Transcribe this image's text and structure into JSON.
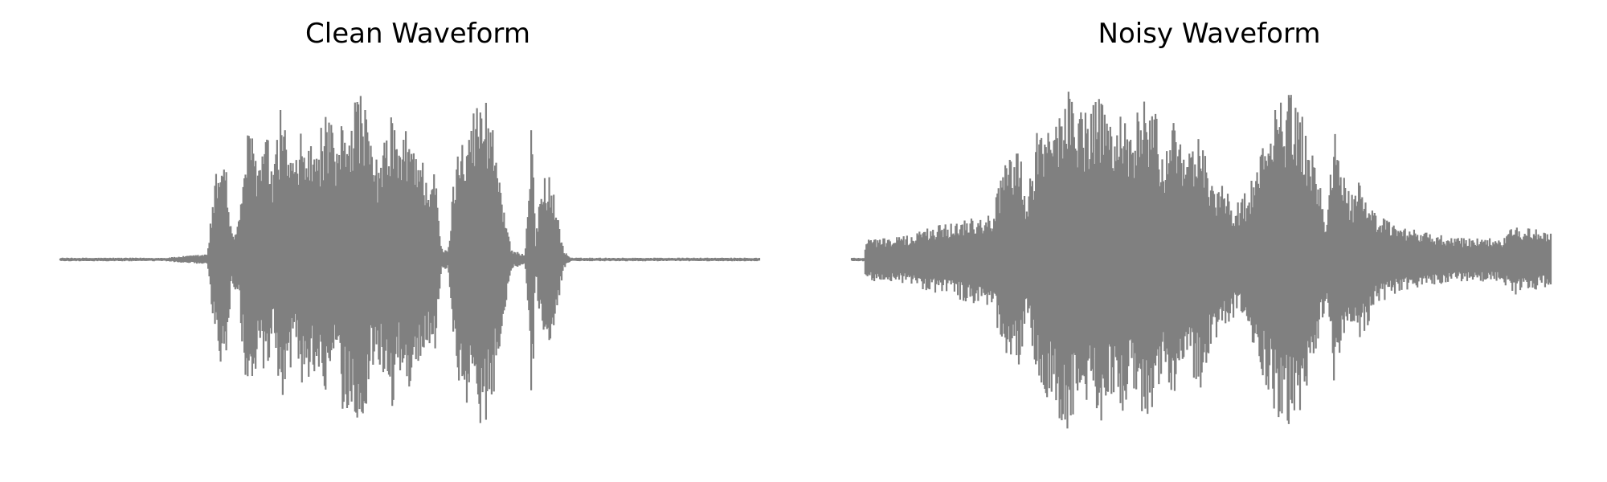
{
  "color": "#808080",
  "chart_data": [
    {
      "type": "waveform",
      "title": "Clean Waveform",
      "axes": "off",
      "grid": false,
      "ylim": [
        -1.0,
        1.0
      ],
      "color": "#808080",
      "envelope": [
        [
          0.0,
          0.01
        ],
        [
          0.05,
          0.01
        ],
        [
          0.1,
          0.01
        ],
        [
          0.15,
          0.01
        ],
        [
          0.18,
          0.02
        ],
        [
          0.21,
          0.03
        ],
        [
          0.225,
          0.55
        ],
        [
          0.235,
          0.65
        ],
        [
          0.245,
          0.15
        ],
        [
          0.255,
          0.2
        ],
        [
          0.265,
          0.68
        ],
        [
          0.275,
          0.7
        ],
        [
          0.285,
          0.55
        ],
        [
          0.295,
          0.72
        ],
        [
          0.305,
          0.45
        ],
        [
          0.315,
          0.85
        ],
        [
          0.325,
          0.68
        ],
        [
          0.335,
          0.5
        ],
        [
          0.345,
          0.7
        ],
        [
          0.355,
          0.65
        ],
        [
          0.365,
          0.6
        ],
        [
          0.375,
          0.75
        ],
        [
          0.385,
          0.8
        ],
        [
          0.395,
          0.55
        ],
        [
          0.405,
          0.85
        ],
        [
          0.415,
          0.8
        ],
        [
          0.425,
          0.95
        ],
        [
          0.435,
          0.9
        ],
        [
          0.445,
          0.6
        ],
        [
          0.455,
          0.55
        ],
        [
          0.465,
          0.65
        ],
        [
          0.475,
          0.85
        ],
        [
          0.485,
          0.6
        ],
        [
          0.495,
          0.72
        ],
        [
          0.505,
          0.68
        ],
        [
          0.515,
          0.6
        ],
        [
          0.525,
          0.45
        ],
        [
          0.535,
          0.55
        ],
        [
          0.545,
          0.06
        ],
        [
          0.555,
          0.05
        ],
        [
          0.565,
          0.55
        ],
        [
          0.575,
          0.75
        ],
        [
          0.585,
          0.8
        ],
        [
          0.595,
          0.85
        ],
        [
          0.605,
          0.92
        ],
        [
          0.615,
          0.85
        ],
        [
          0.625,
          0.6
        ],
        [
          0.635,
          0.3
        ],
        [
          0.645,
          0.05
        ],
        [
          0.655,
          0.04
        ],
        [
          0.665,
          0.03
        ],
        [
          0.675,
          0.85
        ],
        [
          0.68,
          0.1
        ],
        [
          0.69,
          0.5
        ],
        [
          0.7,
          0.45
        ],
        [
          0.71,
          0.3
        ],
        [
          0.72,
          0.05
        ],
        [
          0.73,
          0.01
        ],
        [
          0.8,
          0.01
        ],
        [
          0.9,
          0.01
        ],
        [
          1.0,
          0.01
        ]
      ]
    },
    {
      "type": "waveform",
      "title": "Noisy Waveform",
      "axes": "off",
      "grid": false,
      "ylim": [
        -1.0,
        1.0
      ],
      "color": "#808080",
      "envelope": [
        [
          0.0,
          0.01
        ],
        [
          0.018,
          0.01
        ],
        [
          0.02,
          0.12
        ],
        [
          0.05,
          0.12
        ],
        [
          0.08,
          0.13
        ],
        [
          0.11,
          0.18
        ],
        [
          0.14,
          0.2
        ],
        [
          0.17,
          0.24
        ],
        [
          0.2,
          0.25
        ],
        [
          0.22,
          0.55
        ],
        [
          0.24,
          0.6
        ],
        [
          0.25,
          0.3
        ],
        [
          0.265,
          0.72
        ],
        [
          0.28,
          0.75
        ],
        [
          0.295,
          0.85
        ],
        [
          0.31,
          0.95
        ],
        [
          0.325,
          0.85
        ],
        [
          0.34,
          0.8
        ],
        [
          0.355,
          0.9
        ],
        [
          0.37,
          0.75
        ],
        [
          0.385,
          0.85
        ],
        [
          0.4,
          0.7
        ],
        [
          0.415,
          0.9
        ],
        [
          0.43,
          0.88
        ],
        [
          0.445,
          0.6
        ],
        [
          0.46,
          0.78
        ],
        [
          0.475,
          0.55
        ],
        [
          0.49,
          0.65
        ],
        [
          0.5,
          0.7
        ],
        [
          0.515,
          0.45
        ],
        [
          0.53,
          0.4
        ],
        [
          0.55,
          0.3
        ],
        [
          0.57,
          0.4
        ],
        [
          0.59,
          0.7
        ],
        [
          0.61,
          0.85
        ],
        [
          0.625,
          0.92
        ],
        [
          0.64,
          0.85
        ],
        [
          0.655,
          0.65
        ],
        [
          0.67,
          0.4
        ],
        [
          0.68,
          0.2
        ],
        [
          0.69,
          0.78
        ],
        [
          0.7,
          0.5
        ],
        [
          0.715,
          0.35
        ],
        [
          0.73,
          0.45
        ],
        [
          0.75,
          0.25
        ],
        [
          0.78,
          0.18
        ],
        [
          0.82,
          0.15
        ],
        [
          0.86,
          0.12
        ],
        [
          0.9,
          0.12
        ],
        [
          0.93,
          0.12
        ],
        [
          0.95,
          0.2
        ],
        [
          0.97,
          0.17
        ],
        [
          1.0,
          0.15
        ]
      ]
    }
  ]
}
